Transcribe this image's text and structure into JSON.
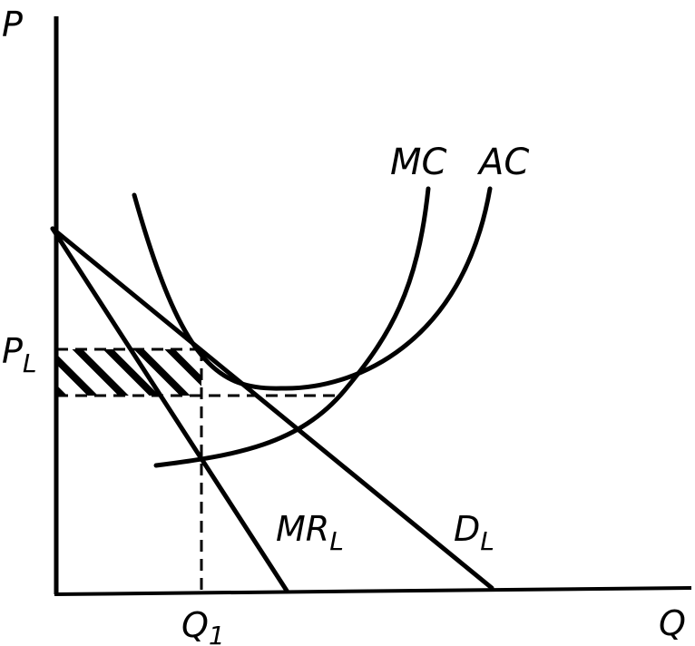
{
  "labels": {
    "y_axis": "P",
    "x_axis": "Q",
    "price_level": "P",
    "price_level_sub": "L",
    "quantity_level": "Q",
    "quantity_level_sub": "1",
    "mc": "MC",
    "ac": "AC",
    "mr": "MR",
    "mr_sub": "L",
    "demand": "D",
    "demand_sub": "L"
  }
}
